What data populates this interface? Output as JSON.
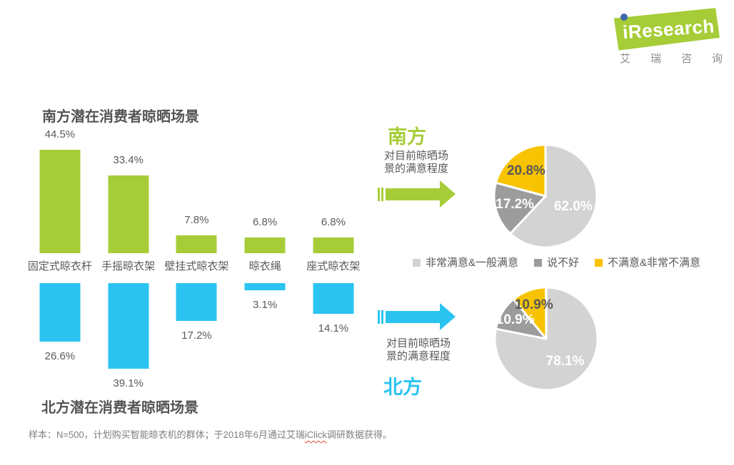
{
  "logo": {
    "brand": "iResearch",
    "brand_cn": "艾瑞咨询"
  },
  "legend": [
    {
      "label": "非常满意&一般满意",
      "color": "#D3D3D3"
    },
    {
      "label": "说不好",
      "color": "#9C9C9C"
    },
    {
      "label": "不满意&非常不满意",
      "color": "#F8C301"
    }
  ],
  "footer": {
    "pre": "样本：N=500，计划购买智能晾衣机的群体；于2018年6月通过艾瑞",
    "wavy": "iClick",
    "post": "调研数据获得。"
  },
  "chart_data": [
    {
      "id": "south_bar",
      "type": "bar",
      "title": "南方潜在消费者晾晒场景",
      "categories": [
        "固定式晾衣杆",
        "手摇晾衣架",
        "壁挂式晾衣架",
        "晾衣绳",
        "座式晾衣架"
      ],
      "values": [
        44.5,
        33.4,
        7.8,
        6.8,
        6.8
      ],
      "unit": "%",
      "bar_color": "#A6CD38",
      "direction": "up",
      "ylim": [
        0,
        50
      ]
    },
    {
      "id": "north_bar",
      "type": "bar",
      "title": "北方潜在消费者晾晒场景",
      "categories": [
        "固定式晾衣杆",
        "手摇晾衣架",
        "壁挂式晾衣架",
        "晾衣绳",
        "座式晾衣架"
      ],
      "values": [
        26.6,
        39.1,
        17.2,
        3.1,
        14.1
      ],
      "unit": "%",
      "bar_color": "#2BC4F0",
      "direction": "down",
      "ylim": [
        0,
        50
      ]
    },
    {
      "id": "south_pie",
      "type": "pie",
      "region": "南方",
      "title": "对目前晾晒场景的满意程度",
      "slices": [
        {
          "label": "非常满意&一般满意",
          "value": 62.0,
          "color": "#D3D3D3",
          "label_color": "#FFFFFF"
        },
        {
          "label": "说不好",
          "value": 17.2,
          "color": "#9C9C9C",
          "label_color": "#FFFFFF"
        },
        {
          "label": "不满意&非常不满意",
          "value": 20.8,
          "color": "#F8C301",
          "label_color": "#595959"
        }
      ]
    },
    {
      "id": "north_pie",
      "type": "pie",
      "region": "北方",
      "title": "对目前晾晒场景的满意程度",
      "slices": [
        {
          "label": "非常满意&一般满意",
          "value": 78.1,
          "color": "#D3D3D3",
          "label_color": "#FFFFFF"
        },
        {
          "label": "说不好",
          "value": 10.9,
          "color": "#9C9C9C",
          "label_color": "#FFFFFF"
        },
        {
          "label": "不满意&非常不满意",
          "value": 10.9,
          "color": "#F8C301",
          "label_color": "#595959"
        }
      ]
    }
  ]
}
